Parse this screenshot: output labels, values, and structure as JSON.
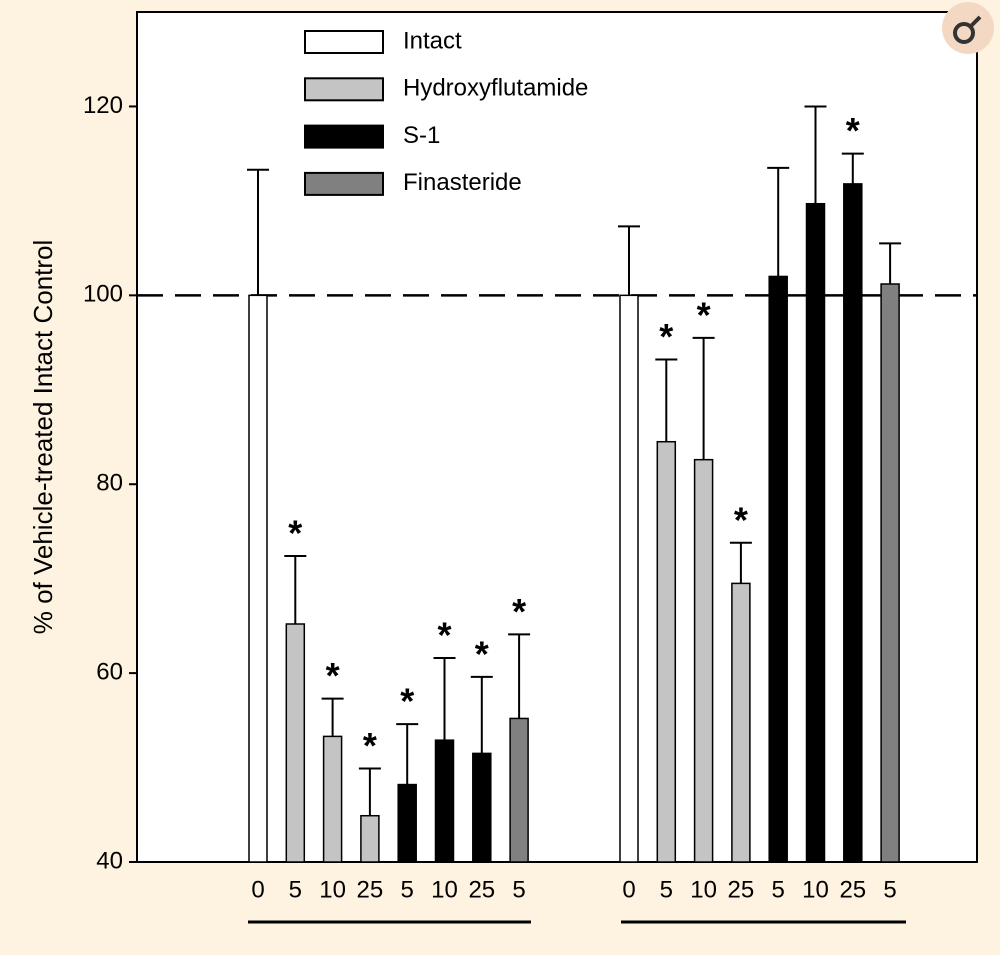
{
  "chart_data": {
    "type": "grouped-bar-error",
    "y_label": "% of Vehicle-treated Intact Control",
    "ylim": [
      40,
      130
    ],
    "yticks": [
      40,
      60,
      80,
      100,
      120
    ],
    "reference_line": 100,
    "series": [
      {
        "name": "Intact",
        "color": "#ffffff",
        "groups": [
          {
            "categories": [
              "0"
            ],
            "values": [
              100
            ],
            "errors": [
              13.3
            ],
            "annotations": [
              null
            ]
          },
          {
            "categories": [
              "0"
            ],
            "values": [
              100
            ],
            "errors": [
              7.3
            ],
            "annotations": [
              null
            ]
          }
        ]
      },
      {
        "name": "Hydroxyflutamide",
        "color": "#c4c4c4",
        "groups": [
          {
            "categories": [
              "5",
              "10",
              "25"
            ],
            "values": [
              65.2,
              53.3,
              44.9
            ],
            "errors": [
              7.2,
              4.0,
              5.0
            ],
            "annotations": [
              "*",
              "*",
              "*"
            ]
          },
          {
            "categories": [
              "5",
              "10",
              "25"
            ],
            "values": [
              84.5,
              82.6,
              69.5
            ],
            "errors": [
              8.7,
              12.9,
              4.3
            ],
            "annotations": [
              "*",
              "*",
              "*"
            ]
          }
        ]
      },
      {
        "name": "S-1",
        "color": "#000000",
        "groups": [
          {
            "categories": [
              "5",
              "10",
              "25"
            ],
            "values": [
              48.2,
              52.9,
              51.5
            ],
            "errors": [
              6.4,
              8.7,
              8.1
            ],
            "annotations": [
              "*",
              "*",
              "*"
            ]
          },
          {
            "categories": [
              "5",
              "10",
              "25"
            ],
            "values": [
              102,
              109.7,
              111.8
            ],
            "errors": [
              11.5,
              10.3,
              3.2
            ],
            "annotations": [
              null,
              null,
              "*"
            ]
          }
        ]
      },
      {
        "name": "Finasteride",
        "color": "#808080",
        "groups": [
          {
            "categories": [
              "5"
            ],
            "values": [
              55.2
            ],
            "errors": [
              8.9
            ],
            "annotations": [
              "*"
            ]
          },
          {
            "categories": [
              "5"
            ],
            "values": [
              101.2
            ],
            "errors": [
              4.3
            ],
            "annotations": [
              null
            ]
          }
        ]
      }
    ]
  }
}
